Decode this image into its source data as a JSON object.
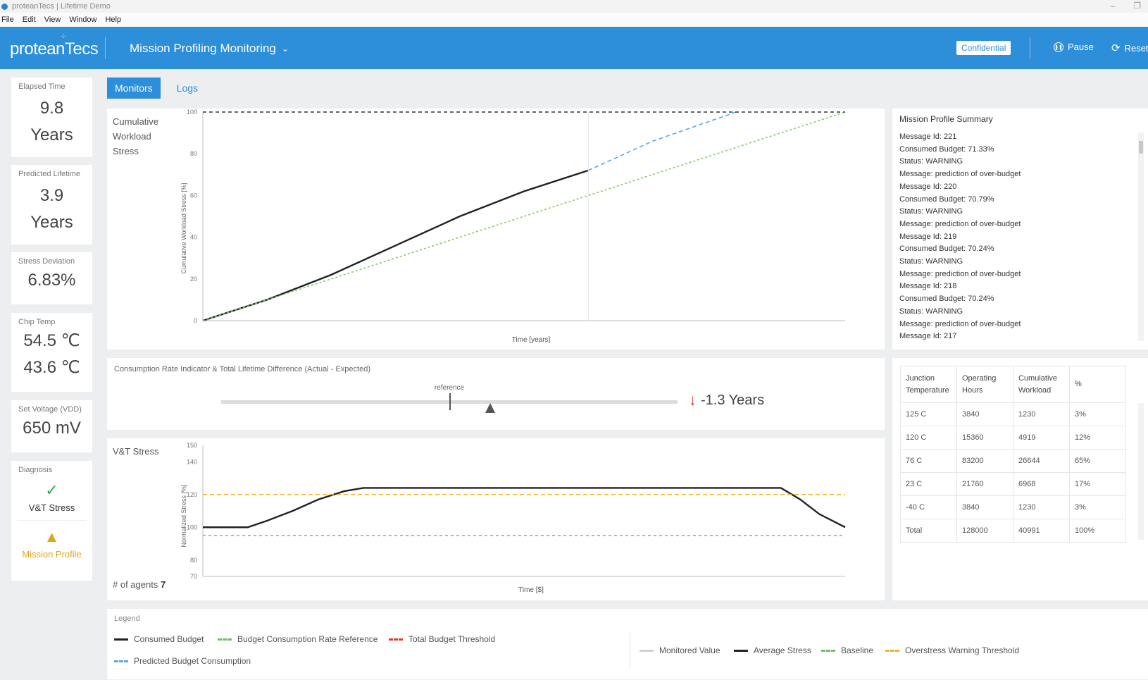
{
  "window": {
    "title": "proteanTecs | Lifetime Demo"
  },
  "menu": [
    "File",
    "Edit",
    "View",
    "Window",
    "Help"
  ],
  "header": {
    "logo_main": "protean",
    "logo_sub": "Tecs",
    "title": "Mission Profiling Monitoring",
    "badge": "Confidential",
    "pause": "Pause",
    "reset": "Reset",
    "colors": {
      "brand": "#2d8ed9"
    }
  },
  "kpis": {
    "elapsed": {
      "label": "Elapsed Time",
      "value": "9.8",
      "unit": "Years"
    },
    "predicted": {
      "label": "Predicted Lifetime",
      "value": "3.9",
      "unit": "Years"
    },
    "deviation": {
      "label": "Stress Deviation",
      "value": "6.83%"
    },
    "chip": {
      "label": "Chip Temp",
      "value1": "54.5 ℃",
      "value2": "43.6 ℃"
    },
    "voltage": {
      "label": "Set Voltage (VDD)",
      "value": "650 mV"
    },
    "diagnosis": {
      "label": "Diagnosis",
      "item1": "V&T Stress",
      "item2": "Mission Profile",
      "icon1": "check-circle-icon",
      "icon2": "warning-icon"
    }
  },
  "tabs": {
    "monitors": "Monitors",
    "logs": "Logs"
  },
  "cws": {
    "title_l1": "Cumulative",
    "title_l2": "Workload",
    "title_l3": "Stress",
    "ylabel": "Cumulative Workload Stress [%]",
    "xlabel": "Time [years]",
    "yticks": [
      "100",
      "80",
      "60",
      "40",
      "20",
      "0"
    ]
  },
  "summary": {
    "title": "Mission Profile Summary",
    "lines": [
      "Message Id: 221",
      "Consumed Budget: 71.33%",
      "Status: WARNING",
      "Message: prediction of over-budget",
      "Message Id: 220",
      "Consumed Budget: 70.79%",
      "Status: WARNING",
      "Message: prediction of over-budget",
      "Message Id: 219",
      "Consumed Budget: 70.24%",
      "Status: WARNING",
      "Message: prediction of over-budget",
      "Message Id: 218",
      "Consumed Budget: 70.24%",
      "Status: WARNING",
      "Message: prediction of over-budget",
      "Message Id: 217"
    ]
  },
  "indicator": {
    "title": "Consumption Rate Indicator & Total Lifetime Difference (Actual - Expected)",
    "reference": "reference",
    "diff": "-1.3 Years",
    "position": 0.59,
    "reference_position": 0.5
  },
  "vt": {
    "title": "V&T Stress",
    "agents_label": "# of agents",
    "agents_value": "7",
    "ylabel": "Normalized Stress [%]",
    "xlabel": "Time [$]",
    "yticks": [
      "150",
      "140",
      "120",
      "100",
      "80",
      "70"
    ]
  },
  "junction": {
    "headers": [
      "Junction Temperature",
      "Operating Hours",
      "Cumulative Workload",
      "%"
    ],
    "rows": [
      [
        "125 C",
        "3840",
        "1230",
        "3%"
      ],
      [
        "120 C",
        "15360",
        "4919",
        "12%"
      ],
      [
        "76 C",
        "83200",
        "26644",
        "65%"
      ],
      [
        "23 C",
        "21760",
        "6968",
        "17%"
      ],
      [
        "-40 C",
        "3840",
        "1230",
        "3%"
      ],
      [
        "Total",
        "128000",
        "40991",
        "100%"
      ]
    ]
  },
  "legend": {
    "title": "Legend",
    "consumed": "Consumed Budget",
    "rate_ref": "Budget Consumption Rate Reference",
    "threshold": "Total Budget Threshold",
    "predicted": "Predicted Budget Consumption",
    "monitored": "Monitored Value",
    "avg": "Average Stress",
    "baseline": "Baseline",
    "overstress": "Overstress Warning Threshold"
  },
  "chart_data": [
    {
      "type": "line",
      "title": "Cumulative Workload Stress",
      "xlabel": "Time [years]",
      "ylabel": "Cumulative Workload Stress [%]",
      "ylim": [
        0,
        100
      ],
      "xlim": [
        0,
        10
      ],
      "series": [
        {
          "name": "Consumed Budget",
          "color": "#222222",
          "x": [
            0,
            1,
            2,
            3,
            4,
            5,
            6
          ],
          "y": [
            0,
            10,
            22,
            36,
            50,
            62,
            72
          ]
        },
        {
          "name": "Predicted Budget Consumption",
          "color": "#5aa9e0",
          "x": [
            6,
            7,
            8.3
          ],
          "y": [
            72,
            86,
            100
          ]
        },
        {
          "name": "Budget Consumption Rate Reference",
          "color": "#8cc66d",
          "x": [
            0,
            10
          ],
          "y": [
            0,
            100
          ]
        },
        {
          "name": "Total Budget Threshold",
          "color": "#333333",
          "x": [
            0,
            10
          ],
          "y": [
            100,
            100
          ]
        }
      ]
    },
    {
      "type": "line",
      "title": "V&T Stress",
      "xlabel": "Time [$]",
      "ylabel": "Normalized Stress [%]",
      "ylim": [
        70,
        150
      ],
      "xlim": [
        0,
        100
      ],
      "series": [
        {
          "name": "Average Stress",
          "color": "#222222",
          "x": [
            0,
            7,
            10,
            14,
            18,
            22,
            25,
            90,
            93,
            96,
            100
          ],
          "y": [
            100,
            100,
            104,
            110,
            117,
            122,
            124,
            124,
            117,
            108,
            100
          ]
        },
        {
          "name": "Overstress Warning Threshold",
          "color": "#f0b429",
          "x": [
            0,
            100
          ],
          "y": [
            120,
            120
          ]
        },
        {
          "name": "Baseline",
          "color": "#6cc16c",
          "x": [
            0,
            100
          ],
          "y": [
            95,
            95
          ]
        }
      ]
    }
  ]
}
